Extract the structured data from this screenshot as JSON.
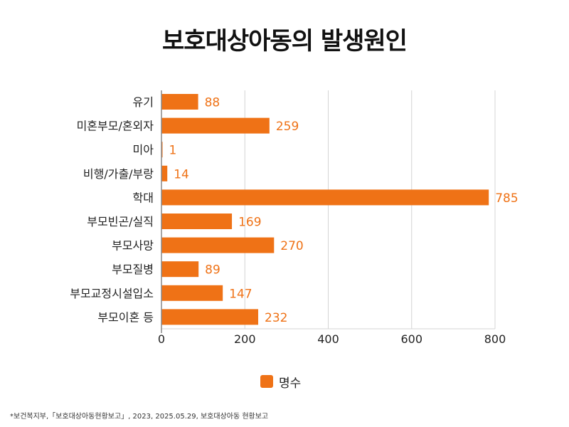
{
  "title": "보호대상아동의 발생원인",
  "footnote": "*보건복지부,「보호대상아동현황보고」, 2023, 2025.05.29, 보호대상아동 현황보고",
  "colors": {
    "bar": "#ef7216",
    "label": "#ef7216",
    "grid": "#d4d4d4",
    "axis": "#888888"
  },
  "chart_data": {
    "type": "bar",
    "orientation": "horizontal",
    "title": "보호대상아동의 발생원인",
    "categories": [
      "유기",
      "미혼부모/혼외자",
      "미아",
      "비행/가출/부랑",
      "학대",
      "부모빈곤/실직",
      "부모사망",
      "부모질병",
      "부모교정시설입소",
      "부모이혼 등"
    ],
    "series": [
      {
        "name": "명수",
        "values": [
          88,
          259,
          1,
          14,
          785,
          169,
          270,
          89,
          147,
          232
        ]
      }
    ],
    "xlim": [
      0,
      800
    ],
    "xticks": [
      0,
      200,
      400,
      600,
      800
    ],
    "grid": true,
    "legend": "bottom",
    "data_labels": true
  }
}
